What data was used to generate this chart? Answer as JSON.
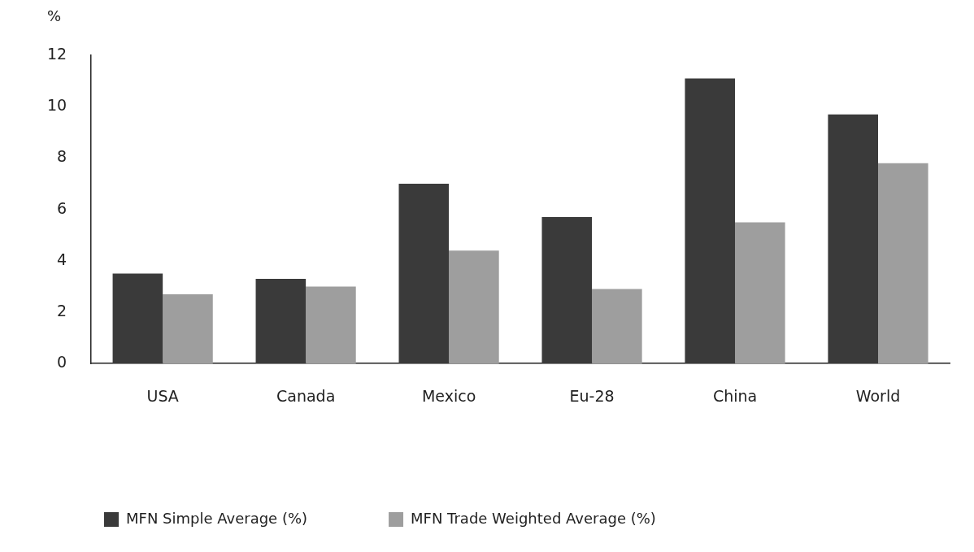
{
  "chart_data": {
    "type": "bar",
    "ylabel": "%",
    "categories": [
      "USA",
      "Canada",
      "Mexico",
      "Eu-28",
      "China",
      "World"
    ],
    "series": [
      {
        "name": "MFN Simple Average (%)",
        "color": "#3a3a3a",
        "values": [
          3.5,
          3.3,
          7.0,
          5.7,
          11.1,
          9.7
        ]
      },
      {
        "name": "MFN Trade Weighted Average (%)",
        "color": "#9e9e9e",
        "values": [
          2.7,
          3.0,
          4.4,
          2.9,
          5.5,
          7.8
        ]
      }
    ],
    "ylim": [
      0,
      12
    ],
    "yticks": [
      0,
      2,
      4,
      6,
      8,
      10,
      12
    ],
    "grid": false,
    "legend": "bottom"
  }
}
